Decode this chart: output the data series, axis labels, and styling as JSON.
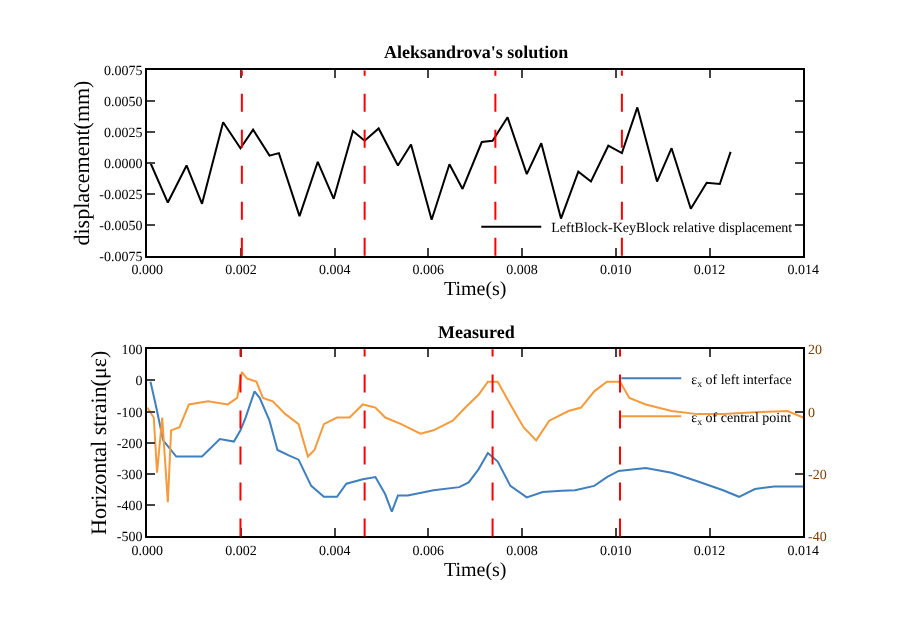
{
  "chart_data": [
    {
      "type": "line",
      "title": "Aleksandrova's solution",
      "xlabel": "Time(s)",
      "ylabel": "displacement(mm)",
      "xlim": [
        0,
        0.014
      ],
      "xticks": [
        {
          "value": 0,
          "label": "0.000"
        },
        {
          "value": 0.002,
          "label": "0.002"
        },
        {
          "value": 0.004,
          "label": "0.004"
        },
        {
          "value": 0.006,
          "label": "0.006"
        },
        {
          "value": 0.008,
          "label": "0.008"
        },
        {
          "value": 0.01,
          "label": "0.010"
        },
        {
          "value": 0.012,
          "label": "0.012"
        },
        {
          "value": 0.014,
          "label": "0.014"
        }
      ],
      "ylim": [
        -0.0075,
        0.0075
      ],
      "yticks": [
        {
          "value": -0.0075,
          "label": "-0.0075"
        },
        {
          "value": -0.005,
          "label": "-0.0050"
        },
        {
          "value": -0.0025,
          "label": "-0.0025"
        },
        {
          "value": 0,
          "label": "0.0000"
        },
        {
          "value": 0.0025,
          "label": "0.0025"
        },
        {
          "value": 0.005,
          "label": "0.0050"
        },
        {
          "value": 0.0075,
          "label": "0.0075"
        }
      ],
      "legend": "bottom right",
      "series": [
        {
          "name": "LeftBlock-KeyBlock relative displacement",
          "color": "#000000",
          "x": [
            7e-05,
            0.00044,
            0.00084,
            0.00117,
            0.00162,
            0.00199,
            0.00226,
            0.00261,
            0.00281,
            0.00325,
            0.00364,
            0.00398,
            0.00439,
            0.00464,
            0.00494,
            0.00535,
            0.00563,
            0.00607,
            0.00645,
            0.00673,
            0.00714,
            0.00737,
            0.00769,
            0.0081,
            0.00841,
            0.00883,
            0.0092,
            0.00947,
            0.00984,
            0.01013,
            0.01046,
            0.01088,
            0.01119,
            0.0116,
            0.01194,
            0.01222,
            0.01245
          ],
          "values": [
            0,
            -0.0032,
            -0.0002,
            -0.0033,
            0.0033,
            0.0012,
            0.0027,
            0.0006,
            0.0008,
            -0.0043,
            0.0001,
            -0.0029,
            0.0026,
            0.0018,
            0.0028,
            -0.0002,
            0.0015,
            -0.0046,
            -0.0001,
            -0.0021,
            0.0017,
            0.0018,
            0.0037,
            -0.0009,
            0.0016,
            -0.0045,
            -0.0007,
            -0.0015,
            0.0014,
            0.0008,
            0.0045,
            -0.0015,
            0.0012,
            -0.0037,
            -0.0016,
            -0.0017,
            0.0009
          ]
        }
      ],
      "ref_lines": [
        {
          "axis": "x",
          "value": 0.00202,
          "color": "#ff0000",
          "line_style": "dashed"
        },
        {
          "axis": "x",
          "value": 0.00464,
          "color": "#ff0000",
          "line_style": "dashed"
        },
        {
          "axis": "x",
          "value": 0.00743,
          "color": "#ff0000",
          "line_style": "dashed"
        },
        {
          "axis": "x",
          "value": 0.01013,
          "color": "#ff0000",
          "line_style": "dashed"
        }
      ]
    },
    {
      "type": "line",
      "title": "Measured",
      "xlabel": "Time(s)",
      "ylabel": "Horizontal strain(με)",
      "xlim": [
        0,
        0.014
      ],
      "xticks": [
        {
          "value": 0,
          "label": "0.000"
        },
        {
          "value": 0.002,
          "label": "0.002"
        },
        {
          "value": 0.004,
          "label": "0.004"
        },
        {
          "value": 0.006,
          "label": "0.006"
        },
        {
          "value": 0.008,
          "label": "0.008"
        },
        {
          "value": 0.01,
          "label": "0.010"
        },
        {
          "value": 0.012,
          "label": "0.012"
        },
        {
          "value": 0.014,
          "label": "0.014"
        }
      ],
      "ylim": [
        -500,
        100
      ],
      "yticks": [
        -500,
        -400,
        -300,
        -200,
        -100,
        0,
        100
      ],
      "y2lim": [
        -40,
        20
      ],
      "y2ticks": [
        -40,
        -20,
        0,
        20
      ],
      "legend": "top right",
      "series": [
        {
          "name": "ε$_{x}$ of left interface",
          "color": "#3f7fbf",
          "x": [
            7e-05,
            0.00018,
            0.00034,
            0.00062,
            0.00117,
            0.00155,
            0.00185,
            0.00199,
            0.0021,
            0.00229,
            0.0024,
            0.00261,
            0.00278,
            0.00302,
            0.00323,
            0.0035,
            0.00377,
            0.00405,
            0.00425,
            0.0046,
            0.00487,
            0.00508,
            0.00522,
            0.00535,
            0.00556,
            0.00611,
            0.00666,
            0.00686,
            0.00707,
            0.00727,
            0.00748,
            0.00775,
            0.0081,
            0.00844,
            0.00885,
            0.00913,
            0.00954,
            0.00981,
            0.01006,
            0.01064,
            0.01119,
            0.01174,
            0.01229,
            0.01263,
            0.01297,
            0.01338,
            0.014
          ],
          "values": [
            -4,
            -77,
            -192,
            -244,
            -244,
            -188,
            -196,
            -160,
            -119,
            -35,
            -56,
            -129,
            -223,
            -240,
            -254,
            -338,
            -373,
            -373,
            -331,
            -317,
            -310,
            -365,
            -421,
            -369,
            -369,
            -352,
            -342,
            -327,
            -285,
            -233,
            -260,
            -338,
            -375,
            -358,
            -354,
            -352,
            -338,
            -310,
            -290,
            -281,
            -296,
            -323,
            -352,
            -373,
            -348,
            -340,
            -340
          ]
        },
        {
          "name": "ε$_{x}$ of central point",
          "color": "#f79a3c",
          "axis": "y2",
          "x": [
            0,
            0.00014,
            0.00021,
            0.00032,
            0.00044,
            0.00051,
            0.00069,
            0.00089,
            0.0013,
            0.00172,
            0.00192,
            0.00202,
            0.00213,
            0.00233,
            0.00247,
            0.00268,
            0.00295,
            0.00323,
            0.00343,
            0.00357,
            0.00377,
            0.00405,
            0.00432,
            0.0046,
            0.00487,
            0.00508,
            0.00542,
            0.00583,
            0.00611,
            0.00652,
            0.00679,
            0.00707,
            0.00727,
            0.00748,
            0.00775,
            0.00803,
            0.0083,
            0.00858,
            0.00899,
            0.00926,
            0.00954,
            0.00981,
            0.01009,
            0.01029,
            0.01064,
            0.01119,
            0.01174,
            0.01229,
            0.01297,
            0.01366,
            0.014
          ],
          "values": [
            1.3,
            -1.9,
            -19.6,
            -1.9,
            -29,
            -6,
            -5,
            2.3,
            3.3,
            2.3,
            4.4,
            12.7,
            10.6,
            9.6,
            4.4,
            3.3,
            -0.8,
            -4,
            -14.4,
            -12.3,
            -4,
            -1.9,
            -1.9,
            2.3,
            1.3,
            -1.9,
            -4,
            -7.1,
            -6,
            -2.9,
            1.3,
            5.4,
            9.6,
            9.6,
            2.3,
            -5,
            -9.2,
            -2.9,
            0.2,
            1.3,
            6.5,
            9.6,
            9.6,
            4.4,
            2.3,
            0.2,
            -0.8,
            -0.8,
            -0.2,
            0.2,
            -1.9
          ]
        }
      ],
      "ref_lines": [
        {
          "axis": "x",
          "value": 0.00199,
          "color": "#ff0000",
          "line_style": "dashed"
        },
        {
          "axis": "x",
          "value": 0.00464,
          "color": "#ff0000",
          "line_style": "dashed"
        },
        {
          "axis": "x",
          "value": 0.00737,
          "color": "#ff0000",
          "line_style": "dashed"
        },
        {
          "axis": "x",
          "value": 0.01009,
          "color": "#ff0000",
          "line_style": "dashed"
        }
      ]
    }
  ]
}
